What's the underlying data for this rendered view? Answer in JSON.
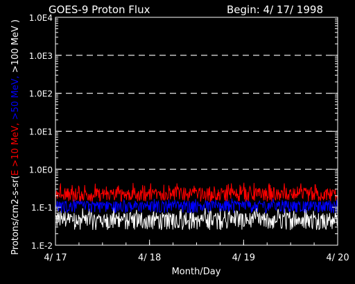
{
  "colors": {
    "background": "#000000",
    "axis": "#ffffff",
    "text": "#ffffff",
    "series_10": "#ff0000",
    "series_50": "#0000ff",
    "series_100": "#ffffff",
    "grid": "#ffffff"
  },
  "chart_data": {
    "type": "line",
    "title": "GOES-9 Proton Flux",
    "subtitle": "Begin: 4/ 17/ 1998",
    "xlabel": "Month/Day",
    "ylabel_parts": [
      {
        "text": "Protons/cm2-s-sr(",
        "color": "#ffffff"
      },
      {
        "text": "E >10 MeV, ",
        "color": "#ff0000"
      },
      {
        "text": ">50 MeV, ",
        "color": "#0000ff"
      },
      {
        "text": ">100 MeV )",
        "color": "#ffffff"
      }
    ],
    "y_scale": "log",
    "ylim": [
      0.01,
      10000
    ],
    "y_ticks": [
      {
        "value": 0.01,
        "label": "1.E-2"
      },
      {
        "value": 0.1,
        "label": "1.E-1"
      },
      {
        "value": 1,
        "label": "1.0E0"
      },
      {
        "value": 10,
        "label": "1.0E1"
      },
      {
        "value": 100,
        "label": "1.0E2"
      },
      {
        "value": 1000,
        "label": "1.0E3"
      },
      {
        "value": 10000,
        "label": "1.0E4"
      }
    ],
    "grid_y_values": [
      1,
      10,
      100,
      1000
    ],
    "grid_style": "dashed",
    "xlim_days": [
      0,
      3
    ],
    "x_ticks": [
      {
        "value": 0,
        "label": "4/ 17"
      },
      {
        "value": 1,
        "label": "4/ 18"
      },
      {
        "value": 2,
        "label": "4/ 19"
      },
      {
        "value": 3,
        "label": "4/ 20"
      }
    ],
    "series": [
      {
        "key": ">10 MeV",
        "color": "#ff0000",
        "typical": 0.22,
        "noise_low": 0.14,
        "noise_high": 0.45
      },
      {
        "key": ">50 MeV",
        "color": "#0000ff",
        "typical": 0.12,
        "noise_low": 0.07,
        "noise_high": 0.17
      },
      {
        "key": ">100 MeV",
        "color": "#ffffff",
        "typical": 0.05,
        "noise_low": 0.025,
        "noise_high": 0.1
      }
    ]
  }
}
